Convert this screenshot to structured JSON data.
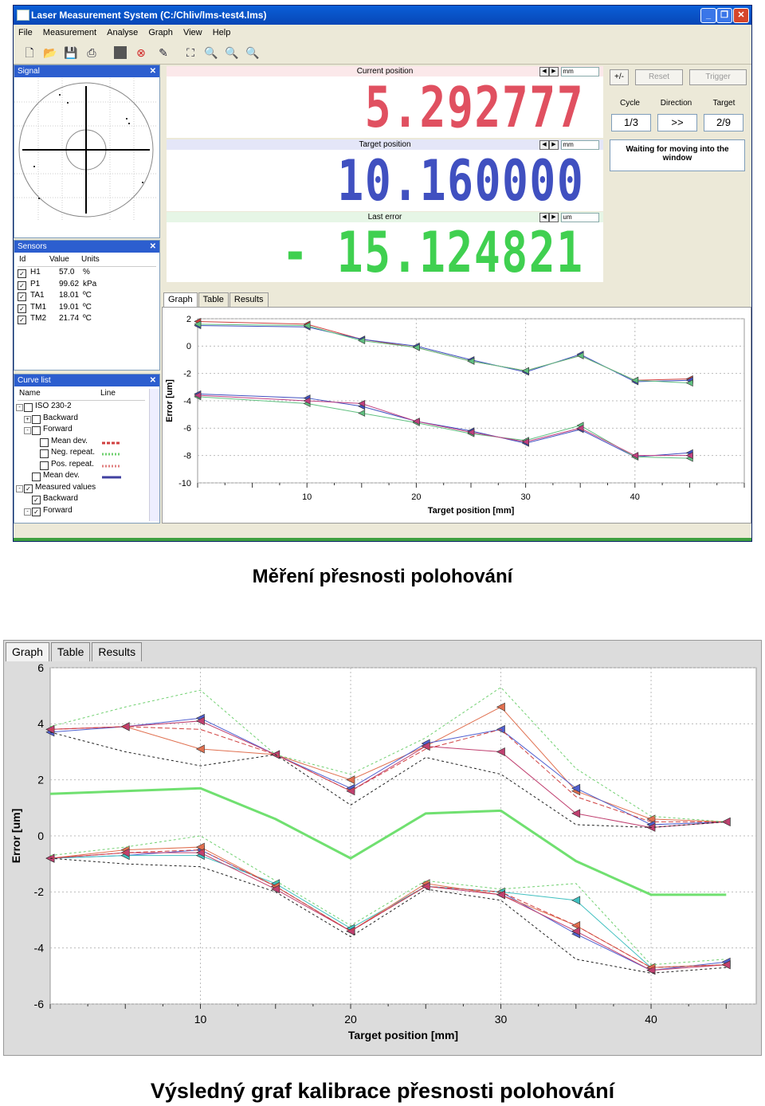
{
  "window": {
    "title": "Laser Measurement System (C:/Chliv/lms-test4.lms)"
  },
  "menu": [
    "File",
    "Measurement",
    "Analyse",
    "Graph",
    "View",
    "Help"
  ],
  "toolbar_icons": [
    "new-icon",
    "open-icon",
    "save-icon",
    "print-icon",
    "stop-icon",
    "cancel-icon",
    "edit-icon",
    "fit-icon",
    "zoom-in-icon",
    "zoom-out-icon",
    "zoom-icon"
  ],
  "signal_panel": {
    "title": "Signal"
  },
  "sensors_panel": {
    "title": "Sensors",
    "columns": [
      "Id",
      "Value",
      "Units"
    ],
    "rows": [
      {
        "id": "H1",
        "value": "57.0",
        "unit": "%"
      },
      {
        "id": "P1",
        "value": "99.62",
        "unit": "kPa"
      },
      {
        "id": "TA1",
        "value": "18.01",
        "unit": "ºC"
      },
      {
        "id": "TM1",
        "value": "19.01",
        "unit": "ºC"
      },
      {
        "id": "TM2",
        "value": "21.74",
        "unit": "ºC"
      }
    ]
  },
  "curve_panel": {
    "title": "Curve list",
    "columns": [
      "Name",
      "Line"
    ],
    "items": [
      {
        "label": "ISO 230-2",
        "indent": 0,
        "checked": false,
        "exp": "-"
      },
      {
        "label": "Backward",
        "indent": 1,
        "checked": false,
        "exp": "+"
      },
      {
        "label": "Forward",
        "indent": 1,
        "checked": false,
        "exp": "-"
      },
      {
        "label": "Mean dev.",
        "indent": 2,
        "checked": false,
        "color": "#d04040",
        "dash": "4,2"
      },
      {
        "label": "Neg. repeat.",
        "indent": 2,
        "checked": false,
        "color": "#70d070",
        "dash": "2,2"
      },
      {
        "label": "Pos. repeat.",
        "indent": 2,
        "checked": false,
        "color": "#e08080",
        "dash": "2,2"
      },
      {
        "label": "Mean dev.",
        "indent": 1,
        "checked": false,
        "color": "#4040a0",
        "dash": ""
      },
      {
        "label": "Measured values",
        "indent": 0,
        "checked": true,
        "exp": "-"
      },
      {
        "label": "Backward",
        "indent": 1,
        "checked": true,
        "exp": ""
      },
      {
        "label": "Forward",
        "indent": 1,
        "checked": true,
        "exp": "-"
      }
    ]
  },
  "displays": {
    "current": {
      "label": "Current position",
      "unit": "mm",
      "value": "5.292777",
      "color": "#e05060"
    },
    "target": {
      "label": "Target position",
      "unit": "mm",
      "value": "10.160000",
      "color": "#4050c0"
    },
    "error": {
      "label": "Last error",
      "unit": "um",
      "value": "- 15.124821",
      "color": "#40d050"
    }
  },
  "control_panel": {
    "buttons": [
      "+/-",
      "Reset",
      "Trigger"
    ],
    "labels": [
      "Cycle",
      "Direction",
      "Target"
    ],
    "values": [
      "1/3",
      ">>",
      "2/9"
    ],
    "message": "Waiting for moving into the window"
  },
  "tabs": [
    "Graph",
    "Table",
    "Results"
  ],
  "captions": {
    "top": "Měření přesnosti polohování",
    "bottom": "Výsledný graf kalibrace přesnosti polohování"
  },
  "chart_data": [
    {
      "type": "line",
      "xlabel": "Target position [mm]",
      "ylabel": "Error [um]",
      "xlim": [
        0,
        50
      ],
      "ylim": [
        -10,
        2
      ],
      "xticks": [
        10,
        20,
        30,
        40
      ],
      "yticks": [
        2,
        0,
        -2,
        -4,
        -6,
        -8,
        -10
      ],
      "grid": true,
      "series": [
        {
          "color": "#d04040",
          "x": [
            0,
            10,
            15,
            20,
            25,
            30,
            35,
            40,
            45
          ],
          "y": [
            1.8,
            1.6,
            0.5,
            -0.1,
            -1.1,
            -1.8,
            -0.7,
            -2.5,
            -2.4
          ]
        },
        {
          "color": "#4050c0",
          "x": [
            0,
            10,
            15,
            20,
            25,
            30,
            35,
            40,
            45
          ],
          "y": [
            1.5,
            1.4,
            0.5,
            0.0,
            -1.0,
            -1.9,
            -0.6,
            -2.6,
            -2.5
          ]
        },
        {
          "color": "#60c080",
          "x": [
            0,
            10,
            15,
            20,
            25,
            30,
            35,
            40,
            45
          ],
          "y": [
            1.6,
            1.5,
            0.4,
            -0.1,
            -1.1,
            -1.8,
            -0.7,
            -2.5,
            -2.7
          ]
        },
        {
          "color": "#4050c0",
          "x": [
            0,
            10,
            15,
            20,
            25,
            30,
            35,
            40,
            45
          ],
          "y": [
            -3.5,
            -3.8,
            -4.4,
            -5.5,
            -6.2,
            -7.1,
            -6.1,
            -8.1,
            -7.8
          ]
        },
        {
          "color": "#60c080",
          "x": [
            0,
            10,
            15,
            20,
            25,
            30,
            35,
            40,
            45
          ],
          "y": [
            -3.7,
            -4.2,
            -4.9,
            -5.6,
            -6.4,
            -6.9,
            -5.8,
            -8.1,
            -8.2
          ]
        },
        {
          "color": "#c04080",
          "x": [
            0,
            10,
            15,
            20,
            25,
            30,
            35,
            40,
            45
          ],
          "y": [
            -3.6,
            -4.0,
            -4.2,
            -5.5,
            -6.3,
            -7.0,
            -6.0,
            -8.0,
            -8.0
          ]
        }
      ]
    },
    {
      "type": "line",
      "xlabel": "Target position [mm]",
      "ylabel": "Error [um]",
      "xlim": [
        0,
        47
      ],
      "ylim": [
        -6,
        6
      ],
      "xticks": [
        10,
        20,
        30,
        40
      ],
      "yticks": [
        6,
        4,
        2,
        0,
        -2,
        -4,
        -6
      ],
      "grid": true,
      "series": [
        {
          "color": "#e07050",
          "dash": "",
          "x": [
            0,
            5,
            10,
            15,
            20,
            25,
            30,
            35,
            40,
            45
          ],
          "y": [
            3.8,
            3.9,
            3.1,
            2.9,
            2.0,
            3.2,
            4.6,
            1.6,
            0.6,
            0.5
          ]
        },
        {
          "color": "#5060d0",
          "dash": "",
          "x": [
            0,
            5,
            10,
            15,
            20,
            25,
            30,
            35,
            40,
            45
          ],
          "y": [
            3.7,
            3.9,
            4.2,
            2.9,
            1.7,
            3.3,
            3.8,
            1.7,
            0.4,
            0.5
          ]
        },
        {
          "color": "#c04070",
          "dash": "",
          "x": [
            0,
            5,
            10,
            15,
            20,
            25,
            30,
            35,
            40,
            45
          ],
          "y": [
            3.8,
            3.9,
            4.1,
            2.9,
            1.6,
            3.2,
            3.0,
            0.8,
            0.3,
            0.5
          ]
        },
        {
          "color": "#d04040",
          "dash": "6,3",
          "x": [
            0,
            5,
            10,
            15,
            20,
            25,
            30,
            35,
            40,
            45
          ],
          "y": [
            3.8,
            3.9,
            3.8,
            2.9,
            1.6,
            3.1,
            3.8,
            1.4,
            0.5,
            0.5
          ]
        },
        {
          "color": "#70d070",
          "dash": "3,3",
          "x": [
            0,
            5,
            10,
            15,
            20,
            25,
            30,
            35,
            40,
            45
          ],
          "y": [
            3.9,
            4.6,
            5.2,
            2.9,
            2.2,
            3.5,
            5.3,
            2.4,
            0.7,
            0.5
          ]
        },
        {
          "color": "#202020",
          "dash": "3,3",
          "x": [
            0,
            5,
            10,
            15,
            20,
            25,
            30,
            35,
            40,
            45
          ],
          "y": [
            3.7,
            3.0,
            2.5,
            2.9,
            1.1,
            2.8,
            2.2,
            0.4,
            0.3,
            0.5
          ]
        },
        {
          "color": "#70e070",
          "dash": "",
          "width": 3,
          "x": [
            0,
            5,
            10,
            15,
            20,
            25,
            30,
            35,
            40,
            45
          ],
          "y": [
            1.5,
            1.6,
            1.7,
            0.6,
            -0.8,
            0.8,
            0.9,
            -0.9,
            -2.1,
            -2.1
          ]
        },
        {
          "color": "#5060d0",
          "dash": "",
          "x": [
            0,
            5,
            10,
            15,
            20,
            25,
            30,
            35,
            40,
            45
          ],
          "y": [
            -0.8,
            -0.7,
            -0.5,
            -1.8,
            -3.4,
            -1.8,
            -2.0,
            -3.5,
            -4.8,
            -4.5
          ]
        },
        {
          "color": "#40c0c0",
          "dash": "",
          "x": [
            0,
            5,
            10,
            15,
            20,
            25,
            30,
            35,
            40,
            45
          ],
          "y": [
            -0.8,
            -0.7,
            -0.7,
            -1.7,
            -3.3,
            -1.8,
            -2.0,
            -2.3,
            -4.7,
            -4.6
          ]
        },
        {
          "color": "#e07050",
          "dash": "",
          "x": [
            0,
            5,
            10,
            15,
            20,
            25,
            30,
            35,
            40,
            45
          ],
          "y": [
            -0.8,
            -0.5,
            -0.4,
            -1.8,
            -3.4,
            -1.7,
            -2.1,
            -3.2,
            -4.7,
            -4.6
          ]
        },
        {
          "color": "#c04070",
          "dash": "",
          "x": [
            0,
            5,
            10,
            15,
            20,
            25,
            30,
            35,
            40,
            45
          ],
          "y": [
            -0.8,
            -0.6,
            -0.6,
            -1.9,
            -3.4,
            -1.8,
            -2.1,
            -3.4,
            -4.8,
            -4.6
          ]
        },
        {
          "color": "#d04040",
          "dash": "6,3",
          "x": [
            0,
            5,
            10,
            15,
            20,
            25,
            30,
            35,
            40,
            45
          ],
          "y": [
            -0.8,
            -0.6,
            -0.5,
            -1.8,
            -3.4,
            -1.8,
            -2.0,
            -3.2,
            -4.7,
            -4.6
          ]
        },
        {
          "color": "#202020",
          "dash": "3,3",
          "x": [
            0,
            5,
            10,
            15,
            20,
            25,
            30,
            35,
            40,
            45
          ],
          "y": [
            -0.8,
            -1.0,
            -1.1,
            -2.0,
            -3.6,
            -1.9,
            -2.3,
            -4.4,
            -4.9,
            -4.7
          ]
        },
        {
          "color": "#70d070",
          "dash": "3,3",
          "x": [
            0,
            5,
            10,
            15,
            20,
            25,
            30,
            35,
            40,
            45
          ],
          "y": [
            -0.7,
            -0.4,
            0.0,
            -1.6,
            -3.2,
            -1.6,
            -1.9,
            -1.7,
            -4.6,
            -4.4
          ]
        }
      ]
    }
  ]
}
